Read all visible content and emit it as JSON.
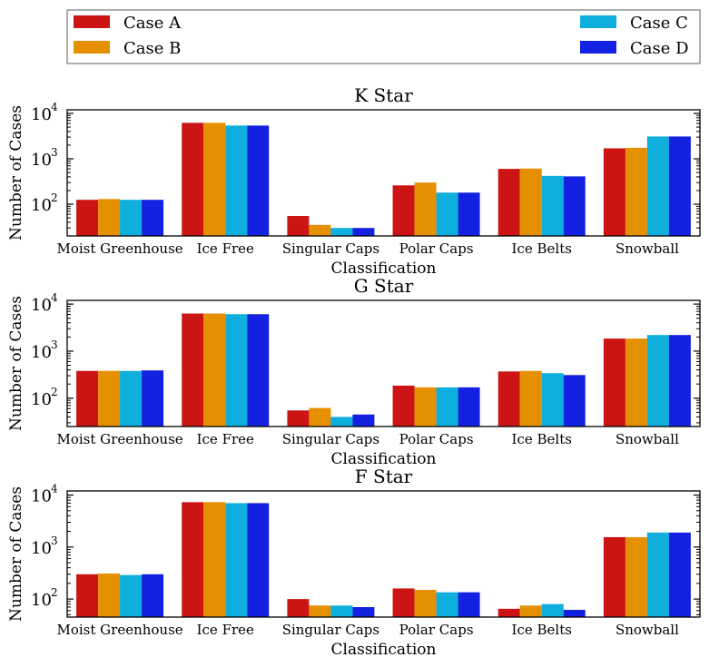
{
  "legend": {
    "placement": "top (above charts, two columns split left and right)",
    "entries": [
      {
        "name": "Case A",
        "color": "#cc1414"
      },
      {
        "name": "Case B",
        "color": "#e59000"
      },
      {
        "name": "Case C",
        "color": "#0eaedd"
      },
      {
        "name": "Case D",
        "color": "#1222e0"
      }
    ]
  },
  "chart_data": [
    {
      "type": "bar",
      "title": "K Star",
      "xlabel": "Classification",
      "ylabel": "Number of Cases",
      "yscale": "log",
      "ylim": [
        20,
        12000
      ],
      "yticks": [
        {
          "base": "10",
          "exp": "2",
          "value": 100
        },
        {
          "base": "10",
          "exp": "3",
          "value": 1000
        },
        {
          "base": "10",
          "exp": "4",
          "value": 10000
        }
      ],
      "categories": [
        "Moist Greenhouse",
        "Ice Free",
        "Singular Caps",
        "Polar Caps",
        "Ice Belts",
        "Snowball"
      ],
      "series": [
        {
          "name": "Case A",
          "values": [
            125,
            6200,
            55,
            260,
            600,
            1700
          ]
        },
        {
          "name": "Case B",
          "values": [
            130,
            6200,
            35,
            300,
            610,
            1750
          ]
        },
        {
          "name": "Case C",
          "values": [
            125,
            5400,
            30,
            180,
            420,
            3100
          ]
        },
        {
          "name": "Case D",
          "values": [
            125,
            5400,
            30,
            180,
            410,
            3100
          ]
        }
      ]
    },
    {
      "type": "bar",
      "title": "G Star",
      "xlabel": "Classification",
      "ylabel": "Number of Cases",
      "yscale": "log",
      "ylim": [
        25,
        12000
      ],
      "yticks": [
        {
          "base": "10",
          "exp": "2",
          "value": 100
        },
        {
          "base": "10",
          "exp": "3",
          "value": 1000
        },
        {
          "base": "10",
          "exp": "4",
          "value": 10000
        }
      ],
      "categories": [
        "Moist Greenhouse",
        "Ice Free",
        "Singular Caps",
        "Polar Caps",
        "Ice Belts",
        "Snowball"
      ],
      "series": [
        {
          "name": "Case A",
          "values": [
            380,
            6300,
            55,
            185,
            370,
            1850
          ]
        },
        {
          "name": "Case B",
          "values": [
            380,
            6300,
            62,
            170,
            380,
            1850
          ]
        },
        {
          "name": "Case C",
          "values": [
            380,
            6100,
            40,
            170,
            340,
            2200
          ]
        },
        {
          "name": "Case D",
          "values": [
            390,
            6100,
            45,
            170,
            310,
            2200
          ]
        }
      ]
    },
    {
      "type": "bar",
      "title": "F Star",
      "xlabel": "Classification",
      "ylabel": "Number of Cases",
      "yscale": "log",
      "ylim": [
        45,
        12000
      ],
      "yticks": [
        {
          "base": "10",
          "exp": "2",
          "value": 100
        },
        {
          "base": "10",
          "exp": "3",
          "value": 1000
        },
        {
          "base": "10",
          "exp": "4",
          "value": 10000
        }
      ],
      "categories": [
        "Moist Greenhouse",
        "Ice Free",
        "Singular Caps",
        "Polar Caps",
        "Ice Belts",
        "Snowball"
      ],
      "series": [
        {
          "name": "Case A",
          "values": [
            300,
            7300,
            100,
            160,
            65,
            1550
          ]
        },
        {
          "name": "Case B",
          "values": [
            310,
            7300,
            75,
            150,
            75,
            1550
          ]
        },
        {
          "name": "Case C",
          "values": [
            290,
            7000,
            75,
            135,
            80,
            1900
          ]
        },
        {
          "name": "Case D",
          "values": [
            300,
            7000,
            70,
            135,
            62,
            1900
          ]
        }
      ]
    }
  ]
}
